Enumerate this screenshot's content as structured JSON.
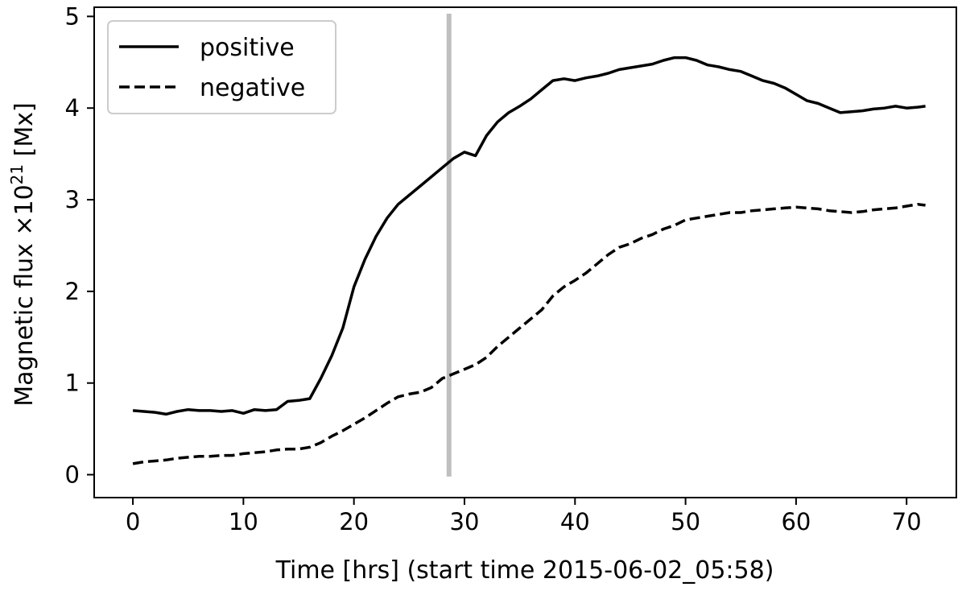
{
  "chart_data": {
    "type": "line",
    "xlabel": "Time [hrs] (start time 2015-06-02_05:58)",
    "ylabel": "Magnetic flux  ×10",
    "ylabel_exponent": "21",
    "ylabel_unit": " [Mx]",
    "xlim": [
      -3.5,
      74.5
    ],
    "ylim": [
      -0.25,
      5.1
    ],
    "xticks": [
      0,
      10,
      20,
      30,
      40,
      50,
      60,
      70
    ],
    "yticks": [
      0,
      1,
      2,
      3,
      4,
      5
    ],
    "grid": false,
    "legend": {
      "position": "top-left"
    },
    "vline": {
      "x": 28.6,
      "y_range": [
        -0.02,
        5.03
      ],
      "color": "#bfbfbf"
    },
    "series": [
      {
        "name": "positive",
        "style": "solid",
        "color": "#000000",
        "points": [
          [
            0,
            0.7
          ],
          [
            1,
            0.69
          ],
          [
            2,
            0.68
          ],
          [
            3,
            0.66
          ],
          [
            4,
            0.69
          ],
          [
            5,
            0.71
          ],
          [
            6,
            0.7
          ],
          [
            7,
            0.7
          ],
          [
            8,
            0.69
          ],
          [
            9,
            0.7
          ],
          [
            10,
            0.67
          ],
          [
            11,
            0.71
          ],
          [
            12,
            0.7
          ],
          [
            13,
            0.71
          ],
          [
            14,
            0.8
          ],
          [
            15,
            0.81
          ],
          [
            16,
            0.83
          ],
          [
            17,
            1.05
          ],
          [
            18,
            1.3
          ],
          [
            19,
            1.6
          ],
          [
            20,
            2.05
          ],
          [
            21,
            2.35
          ],
          [
            22,
            2.6
          ],
          [
            23,
            2.8
          ],
          [
            24,
            2.95
          ],
          [
            25,
            3.05
          ],
          [
            26,
            3.15
          ],
          [
            27,
            3.25
          ],
          [
            28,
            3.35
          ],
          [
            29,
            3.45
          ],
          [
            30,
            3.52
          ],
          [
            31,
            3.48
          ],
          [
            32,
            3.7
          ],
          [
            33,
            3.85
          ],
          [
            34,
            3.95
          ],
          [
            35,
            4.02
          ],
          [
            36,
            4.1
          ],
          [
            37,
            4.2
          ],
          [
            38,
            4.3
          ],
          [
            39,
            4.32
          ],
          [
            40,
            4.3
          ],
          [
            41,
            4.33
          ],
          [
            42,
            4.35
          ],
          [
            43,
            4.38
          ],
          [
            44,
            4.42
          ],
          [
            45,
            4.44
          ],
          [
            46,
            4.46
          ],
          [
            47,
            4.48
          ],
          [
            48,
            4.52
          ],
          [
            49,
            4.55
          ],
          [
            50,
            4.55
          ],
          [
            51,
            4.52
          ],
          [
            52,
            4.47
          ],
          [
            53,
            4.45
          ],
          [
            54,
            4.42
          ],
          [
            55,
            4.4
          ],
          [
            56,
            4.35
          ],
          [
            57,
            4.3
          ],
          [
            58,
            4.27
          ],
          [
            59,
            4.22
          ],
          [
            60,
            4.15
          ],
          [
            61,
            4.08
          ],
          [
            62,
            4.05
          ],
          [
            63,
            4.0
          ],
          [
            64,
            3.95
          ],
          [
            65,
            3.96
          ],
          [
            66,
            3.97
          ],
          [
            67,
            3.99
          ],
          [
            68,
            4.0
          ],
          [
            69,
            4.02
          ],
          [
            70,
            4.0
          ],
          [
            71,
            4.01
          ],
          [
            71.7,
            4.02
          ]
        ]
      },
      {
        "name": "negative",
        "style": "dashed",
        "color": "#000000",
        "points": [
          [
            0,
            0.12
          ],
          [
            1,
            0.14
          ],
          [
            2,
            0.15
          ],
          [
            3,
            0.16
          ],
          [
            4,
            0.18
          ],
          [
            5,
            0.19
          ],
          [
            6,
            0.2
          ],
          [
            7,
            0.2
          ],
          [
            8,
            0.21
          ],
          [
            9,
            0.21
          ],
          [
            10,
            0.23
          ],
          [
            11,
            0.24
          ],
          [
            12,
            0.25
          ],
          [
            13,
            0.27
          ],
          [
            14,
            0.28
          ],
          [
            15,
            0.28
          ],
          [
            16,
            0.3
          ],
          [
            17,
            0.35
          ],
          [
            18,
            0.42
          ],
          [
            19,
            0.48
          ],
          [
            20,
            0.55
          ],
          [
            21,
            0.62
          ],
          [
            22,
            0.7
          ],
          [
            23,
            0.78
          ],
          [
            24,
            0.85
          ],
          [
            25,
            0.88
          ],
          [
            26,
            0.9
          ],
          [
            27,
            0.95
          ],
          [
            28,
            1.05
          ],
          [
            29,
            1.1
          ],
          [
            30,
            1.15
          ],
          [
            31,
            1.2
          ],
          [
            32,
            1.28
          ],
          [
            33,
            1.4
          ],
          [
            34,
            1.5
          ],
          [
            35,
            1.6
          ],
          [
            36,
            1.7
          ],
          [
            37,
            1.8
          ],
          [
            38,
            1.95
          ],
          [
            39,
            2.05
          ],
          [
            40,
            2.12
          ],
          [
            41,
            2.2
          ],
          [
            42,
            2.3
          ],
          [
            43,
            2.4
          ],
          [
            44,
            2.48
          ],
          [
            45,
            2.52
          ],
          [
            46,
            2.58
          ],
          [
            47,
            2.62
          ],
          [
            48,
            2.68
          ],
          [
            49,
            2.72
          ],
          [
            50,
            2.78
          ],
          [
            51,
            2.8
          ],
          [
            52,
            2.82
          ],
          [
            53,
            2.84
          ],
          [
            54,
            2.86
          ],
          [
            55,
            2.86
          ],
          [
            56,
            2.88
          ],
          [
            57,
            2.89
          ],
          [
            58,
            2.9
          ],
          [
            59,
            2.91
          ],
          [
            60,
            2.92
          ],
          [
            61,
            2.91
          ],
          [
            62,
            2.9
          ],
          [
            63,
            2.88
          ],
          [
            64,
            2.87
          ],
          [
            65,
            2.86
          ],
          [
            66,
            2.87
          ],
          [
            67,
            2.89
          ],
          [
            68,
            2.9
          ],
          [
            69,
            2.91
          ],
          [
            70,
            2.93
          ],
          [
            71,
            2.95
          ],
          [
            71.7,
            2.94
          ]
        ]
      }
    ]
  }
}
